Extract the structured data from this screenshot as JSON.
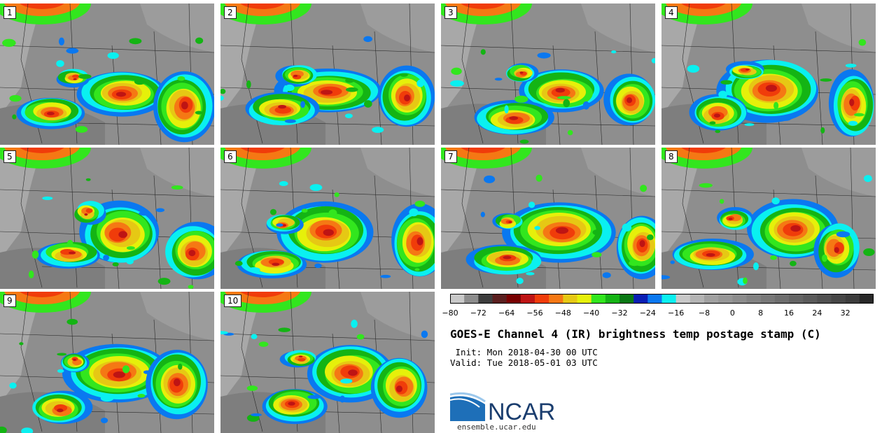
{
  "panels": [
    {
      "label": "1"
    },
    {
      "label": "2"
    },
    {
      "label": "3"
    },
    {
      "label": "4"
    },
    {
      "label": "5"
    },
    {
      "label": "6"
    },
    {
      "label": "7"
    },
    {
      "label": "8"
    },
    {
      "label": "9"
    },
    {
      "label": "10"
    }
  ],
  "colorbar": {
    "colors": [
      "#c8c8c8",
      "#8c8c8c",
      "#3c3c3c",
      "#5a1e1e",
      "#780000",
      "#be1414",
      "#f03c0a",
      "#f57814",
      "#e6c814",
      "#e6f00a",
      "#32e61e",
      "#14b414",
      "#0a7814",
      "#0a1eb4",
      "#0a78f0",
      "#0af0f0",
      "#c8c8c8",
      "#b4b4b4",
      "#a0a0a0",
      "#969696",
      "#8c8c8c",
      "#828282",
      "#787878",
      "#6e6e6e",
      "#646464",
      "#5a5a5a",
      "#505050",
      "#464646",
      "#3c3c3c",
      "#282828"
    ],
    "ticks": [
      "−80",
      "−72",
      "−64",
      "−56",
      "−48",
      "−40",
      "−32",
      "−24",
      "−16",
      "−8",
      "0",
      "8",
      "16",
      "24",
      "32"
    ]
  },
  "title": "GOES-E Channel 4 (IR) brightness temp postage stamp (C)",
  "init_line": " Init: Mon 2018-04-30 00 UTC",
  "valid_line": "Valid: Tue 2018-05-01 03 UTC",
  "logo": {
    "text": "NCAR",
    "url": "ensemble.ucar.edu"
  }
}
